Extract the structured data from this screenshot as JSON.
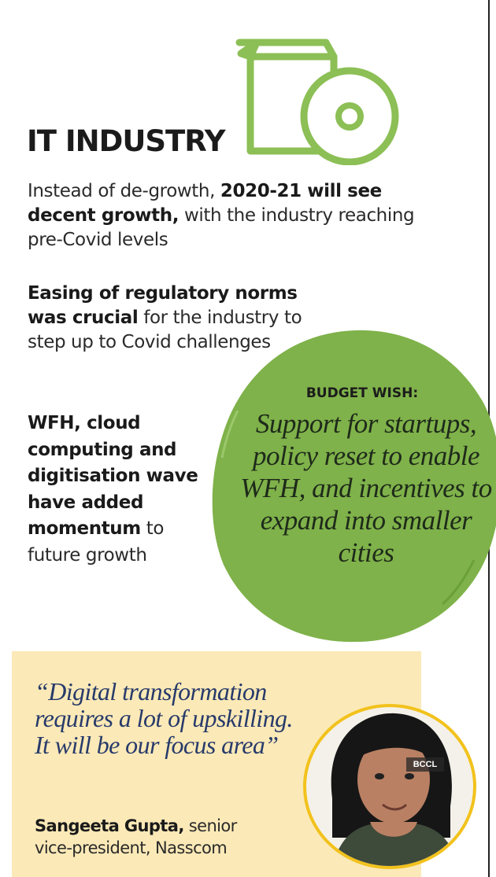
{
  "title": "IT INDUSTRY",
  "points": [
    {
      "bold_lead": "",
      "plain_a": "Instead of de-growth, ",
      "bold_mid": "2020-21 will see decent growth,",
      "plain_b": " with the industry reaching pre-Covid levels"
    },
    {
      "bold_lead": "Easing of regulatory norms was crucial",
      "plain_b": " for the industry to step up to Covid challenges"
    },
    {
      "bold_lead": "WFH, cloud computing and digitisation wave have added momentum",
      "plain_b": " to future growth"
    }
  ],
  "budget_wish": {
    "heading": "BUDGET WISH:",
    "text": "Support for startups, policy reset to enable WFH, and incentives to expand into smaller cities"
  },
  "quote": {
    "text": "“Digital transformation requires a lot of upskilling. It will be our focus area”",
    "name": "Sangeeta Gupta,",
    "designation": " senior vice-president, Nasscom"
  },
  "photo_credit": "BCCL",
  "colors": {
    "green": "#7fb24a",
    "icon_green": "#8cbf55",
    "quote_bg": "#fbe9b7",
    "quote_text": "#273a6a"
  },
  "icons": {
    "header": "software-box-disc-icon"
  }
}
